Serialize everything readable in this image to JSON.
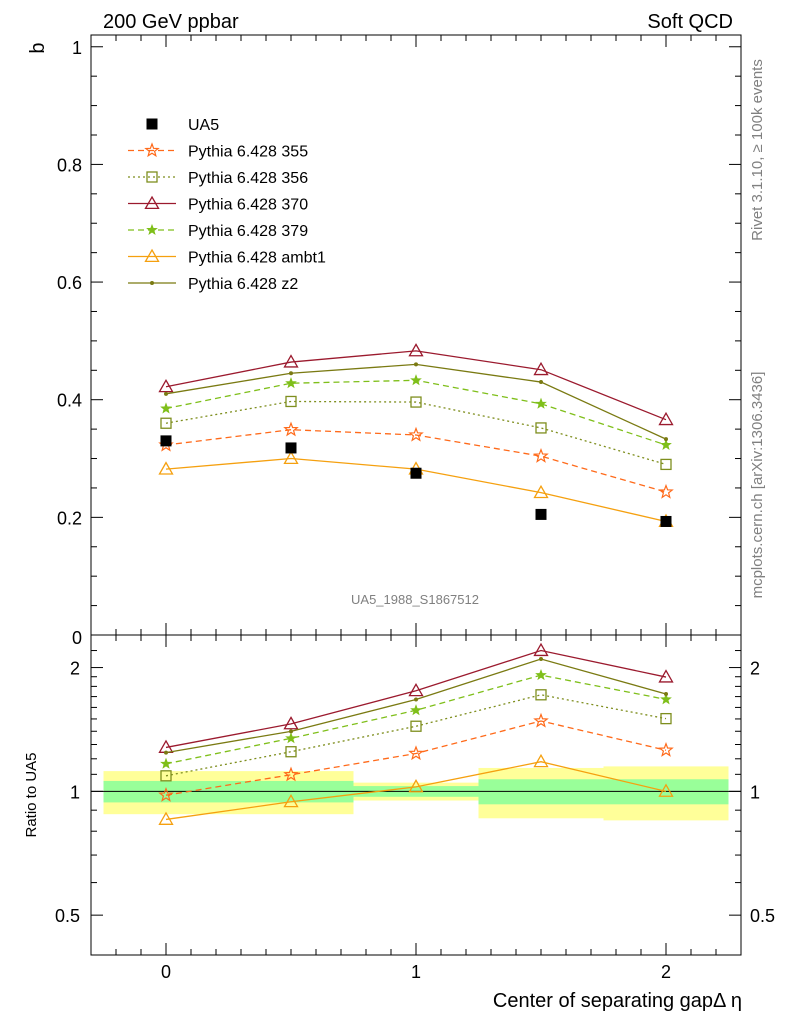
{
  "chart_data": {
    "type": "line",
    "top_left_label": "200 GeV ppbar",
    "top_right_label": "Soft QCD",
    "ylabel": "b",
    "ratio_ylabel": "Ratio to UA5",
    "xlabel": "Center of separating gapΔ η",
    "watermark": "UA5_1988_S1867512",
    "side_label_top": "Rivet 3.1.10, ≥ 100k events",
    "side_label_bottom": "mcplots.cern.ch [arXiv:1306.3436]",
    "xlim": [
      -0.3,
      2.3
    ],
    "ylim": [
      0,
      1.02
    ],
    "ratio_ylim_log": [
      0.4,
      2.4
    ],
    "x_ticks": [
      "0",
      "1",
      "2"
    ],
    "y_ticks": [
      "0.2",
      "0.4",
      "0.6",
      "0.8",
      "1"
    ],
    "y_tick_zero": "0",
    "ratio_ticks": [
      "0.5",
      "1",
      "2"
    ],
    "x": [
      0,
      0.5,
      1,
      1.5,
      2
    ],
    "data": {
      "name": "UA5",
      "values": [
        0.33,
        0.318,
        0.275,
        0.205,
        0.193
      ],
      "band_inner": [
        0.06,
        0.06,
        0.03,
        0.07,
        0.07
      ],
      "band_outer": [
        0.12,
        0.12,
        0.05,
        0.14,
        0.15
      ]
    },
    "series": [
      {
        "name": "Pythia 6.428 355",
        "values": [
          0.323,
          0.349,
          0.34,
          0.304,
          0.243
        ],
        "color": "#ff6a1a",
        "dash": "6,4",
        "marker": "star-open"
      },
      {
        "name": "Pythia 6.428 356",
        "values": [
          0.36,
          0.397,
          0.396,
          0.352,
          0.29
        ],
        "color": "#7e8e1e",
        "dash": "2,3",
        "marker": "square-open"
      },
      {
        "name": "Pythia 6.428 370",
        "values": [
          0.422,
          0.464,
          0.483,
          0.451,
          0.366
        ],
        "color": "#9b1a2e",
        "dash": "",
        "marker": "triangle-open"
      },
      {
        "name": "Pythia 6.428 379",
        "values": [
          0.385,
          0.428,
          0.433,
          0.393,
          0.323
        ],
        "color": "#7fbf1a",
        "dash": "6,4",
        "marker": "star-filled"
      },
      {
        "name": "Pythia 6.428 ambt1",
        "values": [
          0.282,
          0.3,
          0.282,
          0.242,
          0.193
        ],
        "color": "#f5a00f",
        "dash": "",
        "marker": "triangle-open"
      },
      {
        "name": "Pythia 6.428 z2",
        "values": [
          0.41,
          0.445,
          0.46,
          0.43,
          0.333
        ],
        "color": "#7a7a12",
        "dash": "",
        "marker": "dot"
      }
    ],
    "colors": {
      "band_inner": "#99ff99",
      "band_outer": "#ffff99",
      "data": "#000000"
    }
  }
}
